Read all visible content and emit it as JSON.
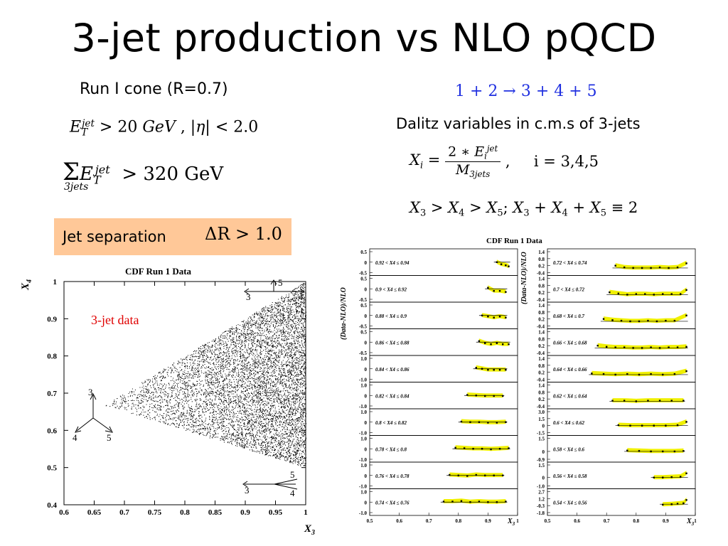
{
  "slide": {
    "title": "3-jet production vs NLO pQCD",
    "run_cone": "Run I cone  (R=0.7)",
    "reaction": "1 + 2 → 3 + 4 + 5",
    "dalitz_text": "Dalitz variables in c.m.s of 3-jets",
    "et_cut": "E_T^jet > 20 GeV , |η| < 2.0",
    "sum_et_cut": "Σ_3jets E_T^jet > 320 GeV",
    "xi_def": "X_i = 2*E_i^jet / M_3jets ,   i = 3,4,5",
    "x_ordering": "X_3 > X_4 > X_5; X_3 + X_4 + X_5 ≡ 2",
    "jet_separation": "Jet separation",
    "jet_separation_cut": "ΔR > 1.0",
    "colors": {
      "title": "#000000",
      "reaction": "#1f2fe0",
      "data_label": "#e00000",
      "box": "#ffc898",
      "band": "#f0f000"
    }
  },
  "chart_data": [
    {
      "type": "scatter",
      "title": "CDF Run 1 Data",
      "xlabel": "X3",
      "ylabel": "X4",
      "xlim": [
        0.6,
        1.0
      ],
      "ylim": [
        0.4,
        1.0
      ],
      "xticks": [
        "0.6",
        "0.65",
        "0.7",
        "0.75",
        "0.8",
        "0.85",
        "0.9",
        "0.95",
        "1"
      ],
      "yticks": [
        "0.4",
        "0.5",
        "0.6",
        "0.7",
        "0.8",
        "0.9",
        "1"
      ],
      "annotation": "3-jet data",
      "region": {
        "vertices": [
          [
            0.667,
            0.667
          ],
          [
            1.0,
            1.0
          ],
          [
            1.0,
            0.5
          ]
        ]
      },
      "topology_labels": {
        "top_right": [
          "3",
          "5",
          "4"
        ],
        "left": [
          "3",
          "4",
          "5"
        ],
        "bottom_right": [
          "5",
          "3",
          "4"
        ]
      }
    },
    {
      "type": "scatter",
      "title": "CDF Run 1 Data",
      "xlabel": "X3",
      "ylabel": "(Data-NLO)/NLO",
      "xlim": [
        0.5,
        1.0
      ],
      "xticks": [
        "0.5",
        "0.6",
        "0.7",
        "0.8",
        "0.9",
        "1"
      ],
      "panels_left": [
        {
          "label": "0.92 < X4 ≤ 0.94",
          "yticks": [
            "0.5",
            "0",
            "-0.5"
          ],
          "x": [
            0.93,
            0.945,
            0.96,
            0.97
          ],
          "y": [
            0.0,
            -0.1,
            -0.15,
            -0.2
          ]
        },
        {
          "label": "0.9 < X4 ≤ 0.92",
          "yticks": [
            "0.5",
            "0",
            "-0.5"
          ],
          "x": [
            0.9,
            0.92,
            0.94,
            0.96
          ],
          "y": [
            0.05,
            -0.1,
            -0.1,
            -0.15
          ]
        },
        {
          "label": "0.88 < X4 ≤ 0.9",
          "yticks": [
            "0.5",
            "0",
            "-0.5"
          ],
          "x": [
            0.88,
            0.9,
            0.92,
            0.94,
            0.96
          ],
          "y": [
            0.0,
            -0.05,
            -0.1,
            -0.05,
            -0.1
          ]
        },
        {
          "label": "0.86 < X4 ≤ 0.88",
          "yticks": [
            "0.5",
            "0",
            "-0.5"
          ],
          "x": [
            0.87,
            0.89,
            0.91,
            0.93,
            0.95,
            0.97
          ],
          "y": [
            0.05,
            -0.05,
            -0.1,
            -0.05,
            -0.1,
            -0.1
          ]
        },
        {
          "label": "0.84 < X4 ≤ 0.86",
          "yticks": [
            "1.0",
            "0",
            "-1.0"
          ],
          "x": [
            0.86,
            0.88,
            0.9,
            0.92,
            0.94,
            0.96
          ],
          "y": [
            0.1,
            0.0,
            -0.1,
            -0.1,
            -0.1,
            -0.1
          ]
        },
        {
          "label": "0.82 < X4 ≤ 0.84",
          "yticks": [
            "1.0",
            "0",
            "-1.0"
          ],
          "x": [
            0.83,
            0.86,
            0.89,
            0.92,
            0.95
          ],
          "y": [
            0.05,
            0.0,
            -0.05,
            -0.05,
            -0.05
          ]
        },
        {
          "label": "0.8 < X4 ≤ 0.82",
          "yticks": [
            "1.0",
            "0",
            "-1.0"
          ],
          "x": [
            0.81,
            0.84,
            0.87,
            0.9,
            0.93,
            0.96
          ],
          "y": [
            0.05,
            0.0,
            0.0,
            -0.05,
            -0.05,
            0.0
          ]
        },
        {
          "label": "0.78 < X4 ≤ 0.8",
          "yticks": [
            "1.0",
            "0",
            "-1.0"
          ],
          "x": [
            0.79,
            0.82,
            0.85,
            0.88,
            0.91,
            0.94,
            0.97
          ],
          "y": [
            0.1,
            0.05,
            0.0,
            0.0,
            -0.05,
            0.0,
            0.05
          ]
        },
        {
          "label": "0.76 < X4 ≤ 0.78",
          "yticks": [
            "1.0",
            "0",
            "-1.0"
          ],
          "x": [
            0.77,
            0.8,
            0.83,
            0.86,
            0.89,
            0.92,
            0.95
          ],
          "y": [
            0.05,
            0.0,
            -0.05,
            0.05,
            0.0,
            0.0,
            0.0
          ]
        },
        {
          "label": "0.74 < X4 ≤ 0.76",
          "yticks": [
            "1.0",
            "0",
            "-1.0"
          ],
          "x": [
            0.75,
            0.78,
            0.81,
            0.84,
            0.87,
            0.9,
            0.93,
            0.96
          ],
          "y": [
            0.05,
            0.05,
            0.1,
            0.0,
            0.05,
            0.0,
            0.0,
            0.05
          ]
        }
      ],
      "panels_right": [
        {
          "label": "0.72 < X4 ≤ 0.74",
          "yticks": [
            "1.4",
            "0.8",
            "0.2",
            "-0.4"
          ],
          "x": [
            0.73,
            0.76,
            0.79,
            0.82,
            0.85,
            0.88,
            0.91,
            0.94,
            0.97
          ],
          "y": [
            0.2,
            0.05,
            0.0,
            0.0,
            0.0,
            0.05,
            0.0,
            0.05,
            0.4
          ]
        },
        {
          "label": "0.7 < X4 ≤ 0.72",
          "yticks": [
            "1.4",
            "0.8",
            "0.2",
            "-0.4"
          ],
          "x": [
            0.71,
            0.74,
            0.77,
            0.8,
            0.83,
            0.86,
            0.89,
            0.92,
            0.95,
            0.97
          ],
          "y": [
            0.2,
            0.1,
            0.0,
            0.05,
            0.05,
            0.0,
            0.05,
            0.05,
            0.05,
            0.4
          ]
        },
        {
          "label": "0.68 < X4 ≤ 0.7",
          "yticks": [
            "1.4",
            "0.8",
            "0.2",
            "-0.4"
          ],
          "x": [
            0.69,
            0.72,
            0.75,
            0.78,
            0.81,
            0.84,
            0.87,
            0.9,
            0.93,
            0.97
          ],
          "y": [
            0.2,
            0.1,
            0.05,
            0.0,
            0.0,
            0.05,
            0.0,
            0.05,
            0.05,
            0.5
          ]
        },
        {
          "label": "0.66 < X4 ≤ 0.68",
          "yticks": [
            "1.4",
            "0.8",
            "0.2",
            "-0.4"
          ],
          "x": [
            0.67,
            0.7,
            0.73,
            0.76,
            0.79,
            0.82,
            0.85,
            0.88,
            0.91,
            0.94,
            0.97
          ],
          "y": [
            0.2,
            0.1,
            0.05,
            0.05,
            0.0,
            0.0,
            0.05,
            0.0,
            0.05,
            0.05,
            0.1
          ]
        },
        {
          "label": "0.64 < X4 ≤ 0.66",
          "yticks": [
            "1.4",
            "0.8",
            "0.2",
            "-0.4"
          ],
          "x": [
            0.65,
            0.69,
            0.73,
            0.77,
            0.81,
            0.85,
            0.89,
            0.93,
            0.97
          ],
          "y": [
            0.1,
            0.05,
            0.0,
            0.05,
            0.0,
            0.05,
            0.0,
            0.05,
            0.3
          ]
        },
        {
          "label": "0.62 < X4 ≤ 0.64",
          "yticks": [
            "1.4",
            "0.8",
            "0.2",
            "-0.4"
          ],
          "x": [
            0.72,
            0.76,
            0.8,
            0.84,
            0.88,
            0.92,
            0.96
          ],
          "y": [
            0.05,
            0.05,
            0.0,
            0.05,
            0.05,
            0.05,
            0.05
          ]
        },
        {
          "label": "0.6 < X4 ≤ 0.62",
          "yticks": [
            "3.0",
            "1.5",
            "0",
            "-1.5"
          ],
          "x": [
            0.74,
            0.78,
            0.82,
            0.86,
            0.9,
            0.94,
            0.97
          ],
          "y": [
            0.1,
            0.0,
            0.0,
            0.0,
            0.0,
            0.1,
            0.8
          ]
        },
        {
          "label": "0.58 < X4 ≤ 0.6",
          "yticks": [
            "1.5",
            "0",
            "-0.9"
          ],
          "x": [
            0.77,
            0.81,
            0.85,
            0.89,
            0.93,
            0.96
          ],
          "y": [
            0.1,
            0.05,
            0.0,
            0.0,
            0.0,
            0.05
          ]
        },
        {
          "label": "0.56 < X4 ≤ 0.58",
          "yticks": [
            "1.5",
            "0",
            "-1.0"
          ],
          "x": [
            0.86,
            0.89,
            0.92,
            0.95,
            0.97
          ],
          "y": [
            0.0,
            0.0,
            0.05,
            0.1,
            0.5
          ]
        },
        {
          "label": "0.54 < X4 ≤ 0.56",
          "yticks": [
            "2.7",
            "1.2",
            "-0.3",
            "-1.8"
          ],
          "x": [
            0.89,
            0.92,
            0.94,
            0.96,
            0.97
          ],
          "y": [
            -0.1,
            0.0,
            0.1,
            0.2,
            0.9
          ]
        }
      ]
    }
  ]
}
